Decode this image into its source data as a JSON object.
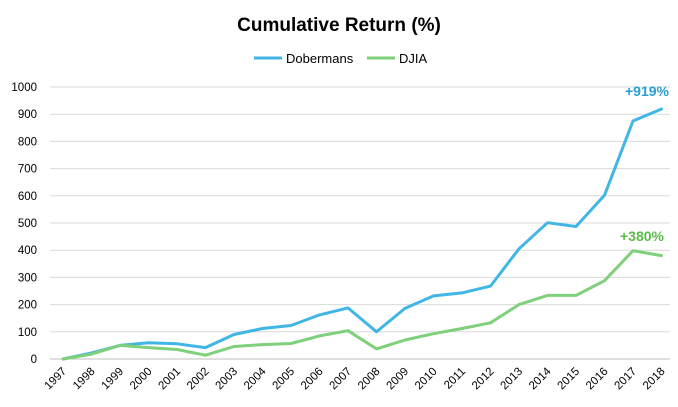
{
  "chart_data": {
    "type": "line",
    "title": "Cumulative Return (%)",
    "xlabel": "",
    "ylabel": "",
    "categories": [
      "1997",
      "1998",
      "1999",
      "2000",
      "2001",
      "2002",
      "2003",
      "2004",
      "2005",
      "2006",
      "2007",
      "2008",
      "2009",
      "2010",
      "2011",
      "2012",
      "2013",
      "2014",
      "2015",
      "2016",
      "2017",
      "2018"
    ],
    "ylim": [
      0,
      1000
    ],
    "yticks": [
      "0",
      "100",
      "200",
      "300",
      "400",
      "500",
      "600",
      "700",
      "800",
      "900",
      "1000"
    ],
    "grid": true,
    "legend_position": "top-center",
    "series": [
      {
        "name": "Dobermans",
        "color": "#41b6e6",
        "values": [
          0,
          22,
          50,
          60,
          56,
          42,
          90,
          112,
          123,
          162,
          188,
          100,
          186,
          232,
          243,
          268,
          405,
          501,
          487,
          602,
          875,
          919
        ],
        "end_label": "+919%"
      },
      {
        "name": "DJIA",
        "color": "#7ed07a",
        "values": [
          0,
          18,
          50,
          42,
          35,
          14,
          46,
          53,
          57,
          85,
          104,
          37,
          70,
          93,
          112,
          133,
          200,
          234,
          234,
          288,
          398,
          380
        ],
        "end_label": "+380%"
      }
    ]
  },
  "annotation_colors": [
    "#2a9fd0",
    "#5bbb4a"
  ]
}
